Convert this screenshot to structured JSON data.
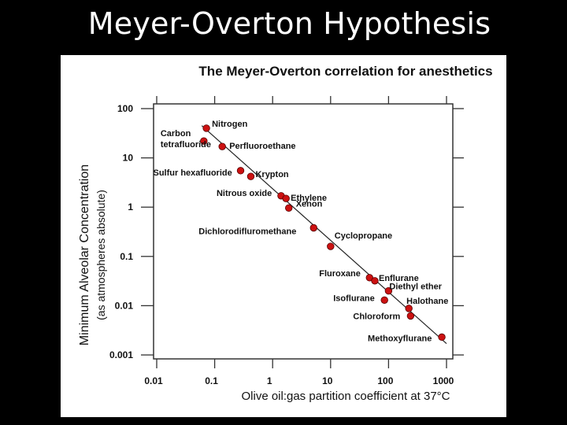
{
  "slide": {
    "title": "Meyer-Overton Hypothesis"
  },
  "chart_data": {
    "type": "scatter",
    "title": "The Meyer-Overton correlation for anesthetics",
    "xlabel": "Olive oil:gas partition coefficient at 37°C",
    "ylabel": "Minimum Alveolar Concentration",
    "ylabel_sub": "(as atmospheres absolute)",
    "xscale": "log",
    "yscale": "log",
    "xlim": [
      0.005,
      1500
    ],
    "ylim": [
      0.0007,
      160
    ],
    "x_ticks": [
      0.01,
      0.1,
      1,
      10,
      100,
      1000
    ],
    "x_tick_labels": [
      "0.01",
      "0.1",
      "1",
      "10",
      "100",
      "1000"
    ],
    "y_ticks": [
      0.001,
      0.01,
      0.1,
      1,
      10,
      100
    ],
    "y_tick_labels": [
      "0.001",
      "0.01",
      "0.1",
      "1",
      "10",
      "100"
    ],
    "grid": false,
    "point_color": "#cc1111",
    "trend_line": {
      "x": [
        0.06,
        1000
      ],
      "y": [
        45,
        0.0017
      ]
    },
    "points": [
      {
        "name": "Nitrogen",
        "x": 0.072,
        "y": 40
      },
      {
        "name": "Carbon tetrafluoride",
        "x": 0.065,
        "y": 22
      },
      {
        "name": "Perfluoroethane",
        "x": 0.135,
        "y": 17
      },
      {
        "name": "Sulfur hexafluoride",
        "x": 0.28,
        "y": 5.5
      },
      {
        "name": "Krypton",
        "x": 0.42,
        "y": 4.2
      },
      {
        "name": "Nitrous oxide",
        "x": 1.4,
        "y": 1.7
      },
      {
        "name": "Ethylene",
        "x": 1.7,
        "y": 1.5
      },
      {
        "name": "Xenon",
        "x": 1.9,
        "y": 0.96
      },
      {
        "name": "Dichlorodifluromethane",
        "x": 5.1,
        "y": 0.38
      },
      {
        "name": "Cyclopropane",
        "x": 10,
        "y": 0.16
      },
      {
        "name": "Fluroxane",
        "x": 47,
        "y": 0.037
      },
      {
        "name": "Enflurane",
        "x": 58,
        "y": 0.032
      },
      {
        "name": "Diethyl ether",
        "x": 100,
        "y": 0.02
      },
      {
        "name": "Isoflurane",
        "x": 85,
        "y": 0.013
      },
      {
        "name": "Halothane",
        "x": 224,
        "y": 0.0088
      },
      {
        "name": "Chloroform",
        "x": 240,
        "y": 0.0062
      },
      {
        "name": "Methoxyflurane",
        "x": 830,
        "y": 0.0023
      }
    ],
    "point_labels": [
      {
        "lines": [
          "Nitrogen"
        ]
      },
      {
        "lines": [
          "Carbon",
          "tetrafluoride"
        ]
      },
      {
        "lines": [
          "Perfluoroethane"
        ]
      },
      {
        "lines": [
          "Sulfur hexafluoride"
        ]
      },
      {
        "lines": [
          "Krypton"
        ]
      },
      {
        "lines": [
          "Nitrous oxide"
        ]
      },
      {
        "lines": [
          "Ethylene"
        ]
      },
      {
        "lines": [
          "Xenon"
        ]
      },
      {
        "lines": [
          "Dichlorodifluromethane"
        ]
      },
      {
        "lines": [
          "Cyclopropane"
        ]
      },
      {
        "lines": [
          "Fluroxane"
        ]
      },
      {
        "lines": [
          "Enflurane"
        ]
      },
      {
        "lines": [
          "Diethyl ether"
        ]
      },
      {
        "lines": [
          "Isoflurane"
        ]
      },
      {
        "lines": [
          "Halothane"
        ]
      },
      {
        "lines": [
          "Chloroform"
        ]
      },
      {
        "lines": [
          "Methoxyflurane"
        ]
      }
    ]
  }
}
